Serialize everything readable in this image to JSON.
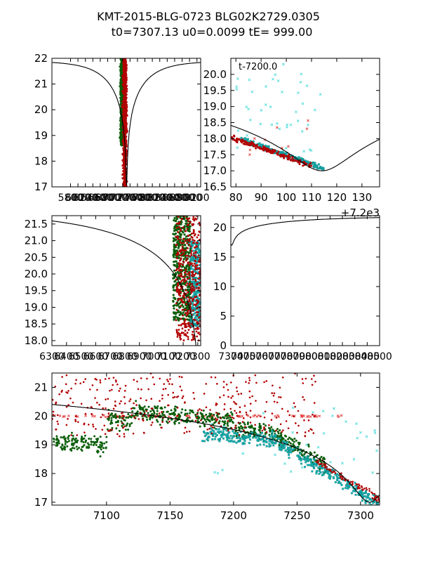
{
  "title_line1": "KMT-2015-BLG-0723 BLG02K2729.0305",
  "title_line2": "t0=7307.13 u0=0.0099 tE= 999.00",
  "colors": {
    "frame": "#000000",
    "model": "#000000",
    "series_green": "#0b5e0b",
    "series_red": "#b20000",
    "series_cyan": "#13b5b5",
    "series_redx": "#e03030",
    "series_cyanx": "#40d8d8"
  },
  "chart_data": [
    {
      "id": "top-left",
      "type": "scatter",
      "xlim": [
        5300,
        9300
      ],
      "ylim": [
        22,
        17
      ],
      "y_ticks": [
        "17",
        "18",
        "19",
        "20",
        "21",
        "22"
      ],
      "x_tick_labels": [
        "5800",
        "6000",
        "6200",
        "6400",
        "6600",
        "6800",
        "7000",
        "7200",
        "7400",
        "7600",
        "7800",
        "8000",
        "8200",
        "8400",
        "8600",
        "8800",
        "9000",
        "9200"
      ],
      "model": {
        "t0": 7307.13,
        "tE": 999.0,
        "base": 21.9,
        "peak": 17.0
      },
      "clusters": [
        {
          "series": "green",
          "x_center": 7180,
          "x_spread": 60,
          "y_range": [
            18.6,
            22
          ]
        },
        {
          "series": "red",
          "x_center": 7260,
          "x_spread": 70,
          "y_range": [
            17,
            22
          ]
        }
      ]
    },
    {
      "id": "top-right",
      "type": "scatter",
      "xlim": [
        7278,
        7337
      ],
      "ylim": [
        20.5,
        16.5
      ],
      "y_ticks": [
        "16.5",
        "17.0",
        "17.5",
        "18.0",
        "18.5",
        "19.0",
        "19.5",
        "20.0"
      ],
      "x_ticks": [
        "80",
        "90",
        "100",
        "110",
        "120",
        "130"
      ],
      "offset_label": "+7.2e3",
      "annotation": "t-7200.0",
      "model": {
        "t0": 7307.13,
        "tE": 999.0,
        "base": 21.9,
        "peak": 17.0,
        "display_shift": 7
      }
    },
    {
      "id": "middle-left",
      "type": "scatter",
      "xlim": [
        6300,
        7320
      ],
      "ylim": [
        21.75,
        17.85
      ],
      "y_ticks": [
        "18.0",
        "18.5",
        "19.0",
        "19.5",
        "20.0",
        "20.5",
        "21.0",
        "21.5"
      ],
      "x_tick_labels": [
        "6300",
        "6400",
        "6500",
        "6600",
        "6700",
        "6800",
        "6900",
        "7000",
        "7100",
        "7200",
        "7300"
      ],
      "model": {
        "t0": 7307.13,
        "tE": 999.0,
        "base": 21.9,
        "peak": 17.0
      }
    },
    {
      "id": "middle-right",
      "type": "line",
      "xlim": [
        7300,
        8500
      ],
      "ylim": [
        22,
        0
      ],
      "y_ticks": [
        "0",
        "5",
        "10",
        "15",
        "20"
      ],
      "x_tick_labels": [
        "7300",
        "7400",
        "7500",
        "7600",
        "7700",
        "7800",
        "7900",
        "8000",
        "8100",
        "8200",
        "8300",
        "8400",
        "8500"
      ],
      "model": {
        "t0": 7307.13,
        "tE": 999.0,
        "base": 21.9,
        "peak": 17.0
      }
    },
    {
      "id": "bottom",
      "type": "scatter",
      "xlim": [
        7057,
        7315
      ],
      "ylim": [
        21.5,
        16.9
      ],
      "y_ticks": [
        "17",
        "18",
        "19",
        "20",
        "21"
      ],
      "x_ticks": [
        "7100",
        "7150",
        "7200",
        "7250",
        "7300"
      ],
      "model": {
        "t0": 7307.13,
        "tE": 999.0,
        "base": 21.9,
        "peak": 17.0
      }
    }
  ]
}
